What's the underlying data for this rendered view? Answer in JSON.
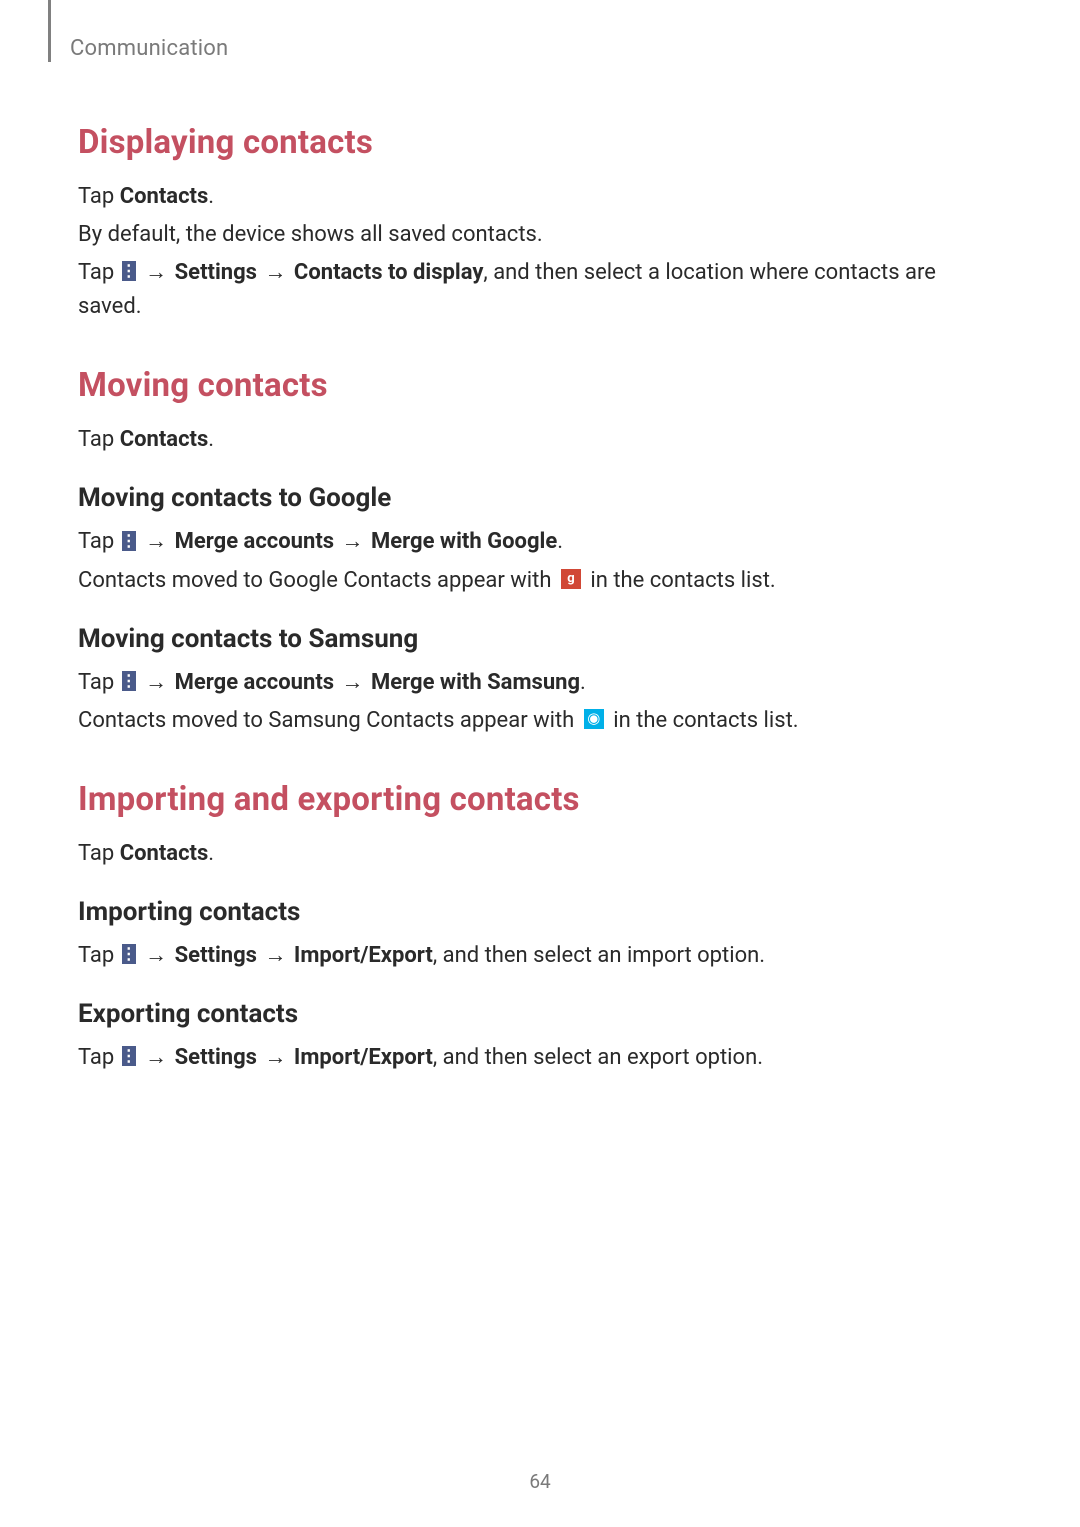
{
  "breadcrumb": "Communication",
  "page_number": "64",
  "sections": {
    "displaying": {
      "title": "Displaying contacts",
      "p1_pre": "Tap ",
      "p1_bold": "Contacts",
      "p1_post": ".",
      "p2": "By default, the device shows all saved contacts.",
      "p3_pre": "Tap ",
      "p3_b1": "Settings",
      "p3_b2": "Contacts to display",
      "p3_post": ", and then select a location where contacts are saved."
    },
    "moving": {
      "title": "Moving contacts",
      "p1_pre": "Tap ",
      "p1_bold": "Contacts",
      "p1_post": ".",
      "sub_google": {
        "title": "Moving contacts to Google",
        "p1_pre": "Tap ",
        "p1_b1": "Merge accounts",
        "p1_b2": "Merge with Google",
        "p1_post": ".",
        "p2_pre": "Contacts moved to Google Contacts appear with ",
        "p2_post": " in the contacts list."
      },
      "sub_samsung": {
        "title": "Moving contacts to Samsung",
        "p1_pre": "Tap ",
        "p1_b1": "Merge accounts",
        "p1_b2": "Merge with Samsung",
        "p1_post": ".",
        "p2_pre": "Contacts moved to Samsung Contacts appear with ",
        "p2_post": " in the contacts list."
      }
    },
    "importexport": {
      "title": "Importing and exporting contacts",
      "p1_pre": "Tap ",
      "p1_bold": "Contacts",
      "p1_post": ".",
      "sub_import": {
        "title": "Importing contacts",
        "p1_pre": "Tap ",
        "p1_b1": "Settings",
        "p1_b2": "Import/Export",
        "p1_post": ", and then select an import option."
      },
      "sub_export": {
        "title": "Exporting contacts",
        "p1_pre": "Tap ",
        "p1_b1": "Settings",
        "p1_b2": "Import/Export",
        "p1_post": ", and then select an export option."
      }
    }
  },
  "arrow": "→"
}
